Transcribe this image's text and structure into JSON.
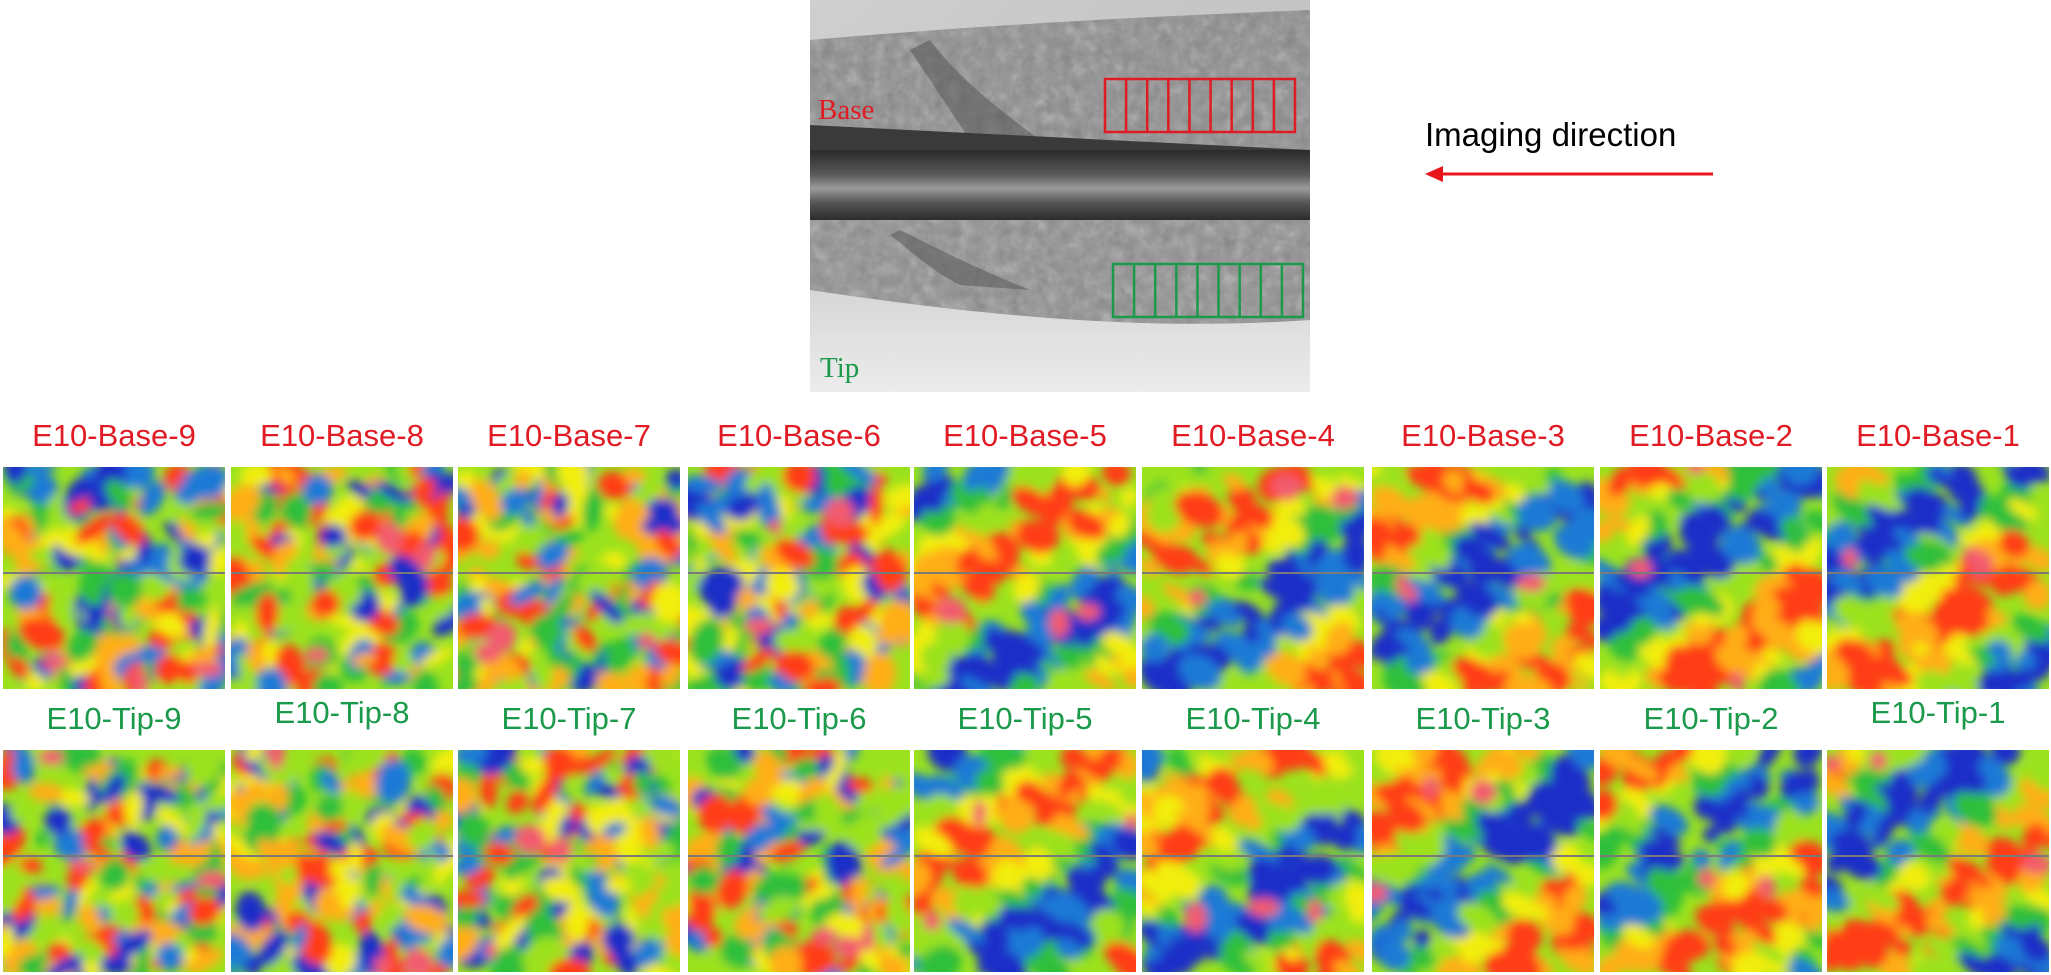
{
  "figure": {
    "photo_labels": {
      "base": "Base",
      "tip": "Tip"
    },
    "direction": {
      "text": "Imaging direction"
    },
    "colors": {
      "base": "#e01b24",
      "tip": "#1a9a4a",
      "arrow": "#e8141a",
      "map_palette": [
        "#1c2fc8",
        "#1f7ad6",
        "#2fbf3a",
        "#9be21e",
        "#f2ee10",
        "#ffae12",
        "#ff3c14",
        "#f25b6e"
      ]
    },
    "rows": [
      {
        "id": "base",
        "color_key": "base",
        "tiles": [
          "E10-Base-9",
          "E10-Base-8",
          "E10-Base-7",
          "E10-Base-6",
          "E10-Base-5",
          "E10-Base-4",
          "E10-Base-3",
          "E10-Base-2",
          "E10-Base-1"
        ]
      },
      {
        "id": "tip",
        "color_key": "tip",
        "tiles": [
          "E10-Tip-9",
          "E10-Tip-8",
          "E10-Tip-7",
          "E10-Tip-6",
          "E10-Tip-5",
          "E10-Tip-4",
          "E10-Tip-3",
          "E10-Tip-2",
          "E10-Tip-1"
        ]
      }
    ],
    "icons": {
      "arrow": "left-arrow-icon"
    }
  }
}
